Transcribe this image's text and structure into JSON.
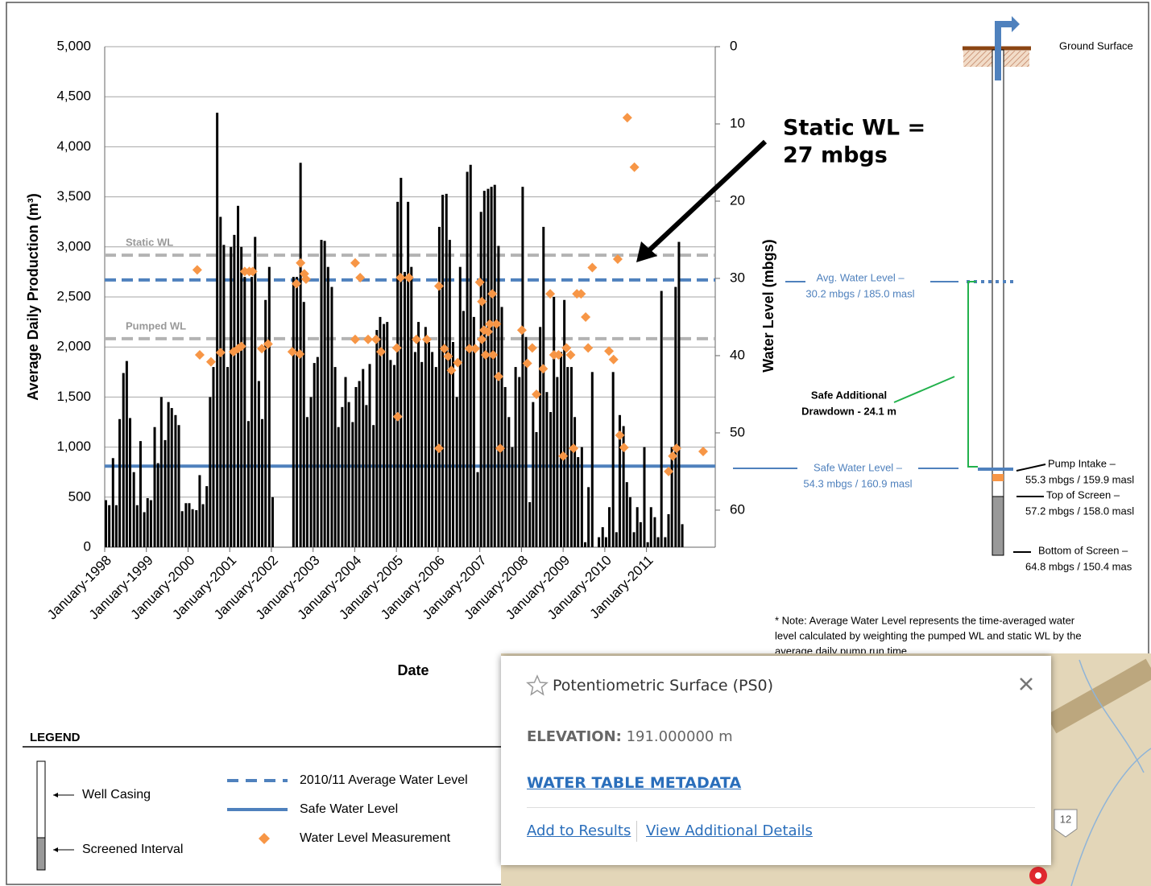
{
  "chart_data": {
    "type": "bar",
    "y_title": "Average Daily Production (m³)",
    "y2_title": "Water Level (mbgs)",
    "x_title": "Date",
    "xlim": [
      1998,
      2012.65
    ],
    "ylim": [
      0,
      5000
    ],
    "y2lim": [
      64.8,
      0
    ],
    "grid": true,
    "xticks": [
      {
        "value": 1998,
        "label": "January-1998"
      },
      {
        "value": 1999,
        "label": "January-1999"
      },
      {
        "value": 2000,
        "label": "January-2000"
      },
      {
        "value": 2001,
        "label": "January-2001"
      },
      {
        "value": 2002,
        "label": "January-2002"
      },
      {
        "value": 2003,
        "label": "January-2003"
      },
      {
        "value": 2004,
        "label": "January-2004"
      },
      {
        "value": 2005,
        "label": "January-2005"
      },
      {
        "value": 2006,
        "label": "January-2006"
      },
      {
        "value": 2007,
        "label": "January-2007"
      },
      {
        "value": 2008,
        "label": "January-2008"
      },
      {
        "value": 2009,
        "label": "January-2009"
      },
      {
        "value": 2010,
        "label": "January-2010"
      },
      {
        "value": 2011,
        "label": "January-2011"
      }
    ],
    "yticks": [
      0,
      500,
      {
        "value": 1000,
        "label": "1,000"
      },
      {
        "value": 1500,
        "label": "1,500"
      },
      {
        "value": 2000,
        "label": "2,000"
      },
      {
        "value": 2500,
        "label": "2,500"
      },
      {
        "value": 3000,
        "label": "3,000"
      },
      {
        "value": 3500,
        "label": "3,500"
      },
      {
        "value": 4000,
        "label": "4,000"
      },
      {
        "value": 4500,
        "label": "4,500"
      },
      {
        "value": 5000,
        "label": "5,000"
      }
    ],
    "y2ticks": [
      0,
      10,
      20,
      30,
      40,
      50,
      60
    ],
    "series": [
      {
        "type": "bar",
        "color": "#000000",
        "x": [
          1998.0,
          1998.08,
          1998.17,
          1998.25,
          1998.33,
          1998.42,
          1998.5,
          1998.58,
          1998.67,
          1998.75,
          1998.83,
          1998.92,
          1999.0,
          1999.08,
          1999.17,
          1999.25,
          1999.33,
          1999.42,
          1999.5,
          1999.58,
          1999.67,
          1999.75,
          1999.83,
          1999.92,
          2000.0,
          2000.08,
          2000.17,
          2000.25,
          2000.33,
          2000.42,
          2000.5,
          2000.58,
          2000.67,
          2000.75,
          2000.83,
          2000.92,
          2001.0,
          2001.08,
          2001.17,
          2001.25,
          2001.33,
          2001.42,
          2001.5,
          2001.58,
          2001.67,
          2001.75,
          2001.83,
          2001.92,
          2002.0,
          2002.08,
          2002.17,
          2002.25,
          2002.33,
          2002.42,
          2002.5,
          2002.58,
          2002.67,
          2002.75,
          2002.83,
          2002.92,
          2003.0,
          2003.08,
          2003.17,
          2003.25,
          2003.33,
          2003.42,
          2003.5,
          2003.58,
          2003.67,
          2003.75,
          2003.83,
          2003.92,
          2004.0,
          2004.08,
          2004.17,
          2004.25,
          2004.33,
          2004.42,
          2004.5,
          2004.58,
          2004.67,
          2004.75,
          2004.83,
          2004.92,
          2005.0,
          2005.08,
          2005.17,
          2005.25,
          2005.33,
          2005.42,
          2005.5,
          2005.58,
          2005.67,
          2005.75,
          2005.83,
          2005.92,
          2006.0,
          2006.08,
          2006.17,
          2006.25,
          2006.33,
          2006.42,
          2006.5,
          2006.58,
          2006.67,
          2006.75,
          2006.83,
          2006.92,
          2007.0,
          2007.08,
          2007.17,
          2007.25,
          2007.33,
          2007.42,
          2007.5,
          2007.58,
          2007.67,
          2007.75,
          2007.83,
          2007.92,
          2008.0,
          2008.08,
          2008.17,
          2008.25,
          2008.33,
          2008.42,
          2008.5,
          2008.58,
          2008.67,
          2008.75,
          2008.83,
          2008.92,
          2009.0,
          2009.08,
          2009.17,
          2009.25,
          2009.33,
          2009.42,
          2009.5,
          2009.58,
          2009.67,
          2009.75,
          2009.83,
          2009.92,
          2010.0,
          2010.08,
          2010.17,
          2010.25,
          2010.33,
          2010.42,
          2010.5,
          2010.58,
          2010.67,
          2010.75,
          2010.83,
          2010.92,
          2011.0,
          2011.08,
          2011.17,
          2011.25,
          2011.33,
          2011.42,
          2011.5,
          2011.58,
          2011.67,
          2011.75,
          2011.83
        ],
        "values": [
          470,
          420,
          890,
          420,
          1280,
          1740,
          1860,
          1290,
          750,
          420,
          1060,
          350,
          490,
          470,
          1200,
          840,
          1500,
          1070,
          1450,
          1390,
          1320,
          1220,
          360,
          440,
          440,
          380,
          370,
          720,
          430,
          610,
          1500,
          1800,
          4340,
          3300,
          3020,
          1800,
          3000,
          3120,
          3410,
          3000,
          2700,
          1260,
          2700,
          3100,
          1660,
          1280,
          2470,
          2800,
          500,
          0,
          0,
          0,
          0,
          0,
          2700,
          2700,
          3840,
          2450,
          1300,
          1500,
          1840,
          1900,
          3070,
          3060,
          2800,
          2600,
          1800,
          1200,
          1400,
          1700,
          1450,
          1250,
          1600,
          1660,
          1780,
          1420,
          1830,
          1220,
          2170,
          2300,
          2230,
          2250,
          1870,
          1820,
          3450,
          3690,
          2750,
          3450,
          2800,
          1950,
          2250,
          1850,
          2200,
          2050,
          1950,
          1800,
          3200,
          3520,
          3530,
          3070,
          2050,
          1500,
          2800,
          2360,
          3750,
          3820,
          2300,
          750,
          3350,
          3560,
          3580,
          3600,
          3620,
          3010,
          2400,
          1600,
          1300,
          1000,
          1800,
          1700,
          3600,
          2100,
          450,
          1450,
          1150,
          2200,
          3200,
          1550,
          1350,
          2500,
          1700,
          1950,
          2470,
          1800,
          1800,
          1300,
          900,
          1000,
          50,
          600,
          1750,
          0,
          100,
          200,
          100,
          400,
          1750,
          150,
          1320,
          1210,
          650,
          500,
          150,
          400,
          250,
          1000,
          50,
          400,
          300,
          100,
          2560,
          100,
          330,
          1000,
          2600,
          3050,
          230
        ]
      },
      {
        "type": "scatter",
        "name": "Water Level Measurement",
        "color": "#f79646",
        "axis": "y2",
        "x": [
          2000.22,
          2000.28,
          2000.55,
          2000.78,
          2001.09,
          2001.2,
          2001.28,
          2001.36,
          2001.47,
          2001.55,
          2001.77,
          2001.92,
          2002.5,
          2002.6,
          2002.68,
          2002.7,
          2002.79,
          2002.83,
          2004.01,
          2004.01,
          2004.13,
          2004.32,
          2004.51,
          2004.63,
          2005.01,
          2005.03,
          2005.1,
          2005.3,
          2005.48,
          2005.73,
          2006.02,
          2006.02,
          2006.15,
          2006.24,
          2006.32,
          2006.47,
          2006.75,
          2006.89,
          2007.0,
          2007.05,
          2007.05,
          2007.1,
          2007.14,
          2007.2,
          2007.24,
          2007.3,
          2007.32,
          2007.4,
          2007.45,
          2007.49,
          2008.01,
          2008.14,
          2008.26,
          2008.36,
          2008.52,
          2008.69,
          2008.78,
          2008.89,
          2009.0,
          2009.08,
          2009.18,
          2009.25,
          2009.33,
          2009.43,
          2009.54,
          2009.6,
          2009.7,
          2010.1,
          2010.21,
          2010.31,
          2010.36,
          2010.46,
          2010.54,
          2010.71,
          2011.53,
          2011.63,
          2011.72,
          2012.36
        ],
        "values": [
          28.9,
          39.9,
          40.8,
          39.6,
          39.5,
          39.1,
          38.8,
          29.1,
          29.1,
          29.1,
          39.1,
          38.5,
          39.5,
          30.7,
          39.8,
          28,
          29.4,
          30.1,
          28,
          37.9,
          29.9,
          37.9,
          37.9,
          39.5,
          39,
          47.9,
          29.9,
          29.9,
          37.9,
          37.9,
          31,
          52,
          39.1,
          40.1,
          41.9,
          40.9,
          39.1,
          39.1,
          30.5,
          33,
          37.9,
          36.7,
          39.9,
          36.9,
          35.9,
          32,
          39.9,
          35.9,
          42.7,
          52,
          36.7,
          41,
          39,
          45,
          41.7,
          32,
          39.9,
          39.9,
          53,
          39,
          39.9,
          52,
          32,
          32,
          35,
          39,
          28.6,
          39.4,
          40.5,
          27.5,
          50.3,
          51.9,
          9.2,
          15.6,
          55,
          53,
          52,
          52.4
        ]
      }
    ],
    "reference_lines": [
      {
        "label": "Static WL",
        "value": 27,
        "axis": "y2",
        "color": "#b3b3b3",
        "style": "dashed"
      },
      {
        "label": "Pumped WL",
        "value": 37.8,
        "axis": "y2",
        "color": "#b3b3b3",
        "style": "dashed"
      },
      {
        "name": "2010/11 Average Water Level",
        "value": 30.2,
        "axis": "y2",
        "color": "#4f81bd",
        "style": "dashed"
      },
      {
        "name": "Safe Water Level",
        "value": 54.3,
        "axis": "y2",
        "color": "#4f81bd",
        "style": "solid"
      }
    ],
    "annotations": [
      "Static WL =",
      "27 mbgs"
    ]
  },
  "well_diagram": {
    "ground": "Ground Surface",
    "avg_level": [
      "Avg. Water Level –",
      "30.2 mbgs / 185.0 masl"
    ],
    "drawdown": [
      "Safe Additional",
      "Drawdown -  24.1 m"
    ],
    "safe_level": [
      "Safe Water Level –",
      "54.3 mbgs / 160.9 masl"
    ],
    "pump_intake": [
      "Pump Intake –",
      "55.3 mbgs / 159.9 masl"
    ],
    "top_screen": [
      "Top of Screen –",
      "57.2 mbgs / 158.0 masl"
    ],
    "bottom_screen": [
      "Bottom of Screen –",
      "64.8 mbgs / 150.4 mas"
    ],
    "note": [
      "* Note:  Average Water Level represents the time-averaged water",
      "level calculated by weighting the pumped WL and static WL by the",
      "average  daily pump run time"
    ]
  },
  "legend": {
    "title": "LEGEND",
    "casing": "Well Casing",
    "screen": "Screened Interval"
  },
  "popup": {
    "title": "Potentiometric Surface (PS0)",
    "label": "ELEVATION:",
    "value": "191.000000 m",
    "link": "WATER TABLE METADATA",
    "actions": [
      "Add to Results",
      "View Additional Details"
    ]
  },
  "map": {
    "labels": [
      "12"
    ]
  }
}
